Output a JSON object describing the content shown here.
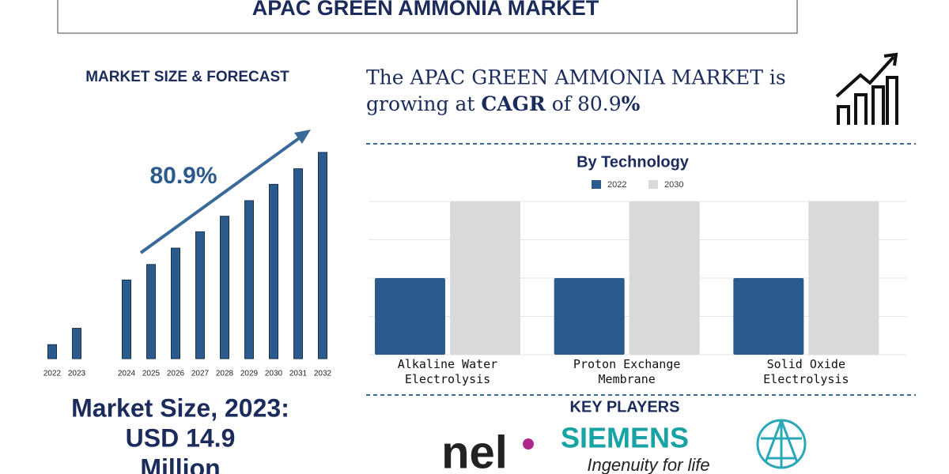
{
  "header": {
    "title": "APAC GREEN AMMONIA MARKET"
  },
  "cagr": {
    "line1": "The APAC GREEN AMMONIA MARKET is",
    "line2": [
      "growing at ",
      "CAGR",
      " of 80.9",
      "%"
    ]
  },
  "market_size": {
    "label": "Market Size, 2023:",
    "value": "USD 14.9",
    "unit": "Million"
  },
  "key_players": {
    "title": "KEY PLAYERS",
    "nel": "nel",
    "siemens": "SIEMENS",
    "siemens_slogan": "Ingenuity for life"
  },
  "chart_data": [
    {
      "type": "bar",
      "title": "MARKET SIZE & FORECAST",
      "annotation": "80.9%",
      "categories": [
        "2022",
        "2023",
        "2024",
        "2025",
        "2026",
        "2027",
        "2028",
        "2029",
        "2030",
        "2031",
        "2032"
      ],
      "values": [
        18,
        39,
        101,
        121,
        142,
        163,
        183,
        203,
        224,
        244,
        265
      ],
      "color": "#2b5a8c",
      "ylim": [
        0,
        270
      ]
    },
    {
      "type": "grouped-bar",
      "title": "By Technology",
      "categories": [
        "Alkaline Water Electrolysis",
        "Proton Exchange Membrane",
        "Solid Oxide Electrolysis"
      ],
      "series": [
        {
          "name": "2022",
          "color": "#2b5a8c",
          "values": [
            2,
            2,
            2
          ]
        },
        {
          "name": "2030",
          "color": "#d9d9d9",
          "values": [
            4,
            4,
            4
          ]
        }
      ],
      "ylim": [
        0,
        4
      ],
      "yticks": [
        0,
        1,
        2,
        3,
        4
      ],
      "grid": true
    }
  ]
}
